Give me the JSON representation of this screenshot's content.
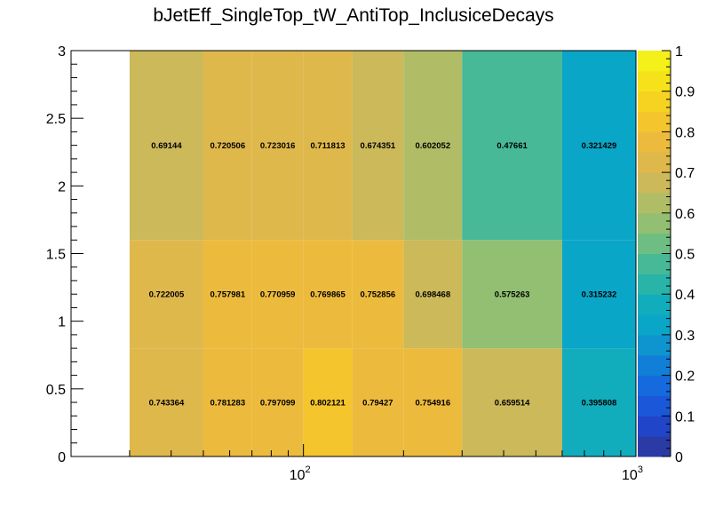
{
  "chart_data": {
    "type": "heatmap",
    "title": "bJetEff_SingleTop_tW_AntiTop_InclusiceDecays",
    "xlabel": "",
    "ylabel": "",
    "x_scale": "log",
    "xlim": [
      20,
      1000
    ],
    "ylim": [
      0,
      3
    ],
    "x_edges": [
      30,
      50,
      70,
      100,
      140,
      200,
      300,
      600,
      1000
    ],
    "y_edges": [
      0,
      0.8,
      1.6,
      3
    ],
    "values": [
      [
        "0.743364",
        "0.781283",
        "0.797099",
        "0.802121",
        "0.79427",
        "0.754916",
        "0.659514",
        "0.395808"
      ],
      [
        "0.722005",
        "0.757981",
        "0.770959",
        "0.769865",
        "0.752856",
        "0.698468",
        "0.575263",
        "0.315232"
      ],
      [
        "0.69144",
        "0.720506",
        "0.723016",
        "0.711813",
        "0.674351",
        "0.602052",
        "0.47661",
        "0.321429"
      ]
    ],
    "y_ticks": [
      "0",
      "0.5",
      "1",
      "1.5",
      "2",
      "2.5",
      "3"
    ],
    "x_ticks": [
      {
        "base": "10",
        "exp": "2",
        "value": 100
      },
      {
        "base": "10",
        "exp": "3",
        "value": 1000
      }
    ],
    "colorbar": {
      "range": [
        0,
        1
      ],
      "ticks": [
        "0",
        "0.1",
        "0.2",
        "0.3",
        "0.4",
        "0.5",
        "0.6",
        "0.7",
        "0.8",
        "0.9",
        "1"
      ],
      "colors": [
        "#2b3ba6",
        "#2145c8",
        "#1b58d9",
        "#156ade",
        "#117ed8",
        "#0e95cf",
        "#0aa6c8",
        "#12adbd",
        "#28b4a7",
        "#47b996",
        "#6ebe83",
        "#92bf72",
        "#b1bd66",
        "#cbb95a",
        "#dfb84c",
        "#ecbb3d",
        "#f4c52d",
        "#f7d321",
        "#f6e21b",
        "#f4f01a"
      ]
    }
  }
}
